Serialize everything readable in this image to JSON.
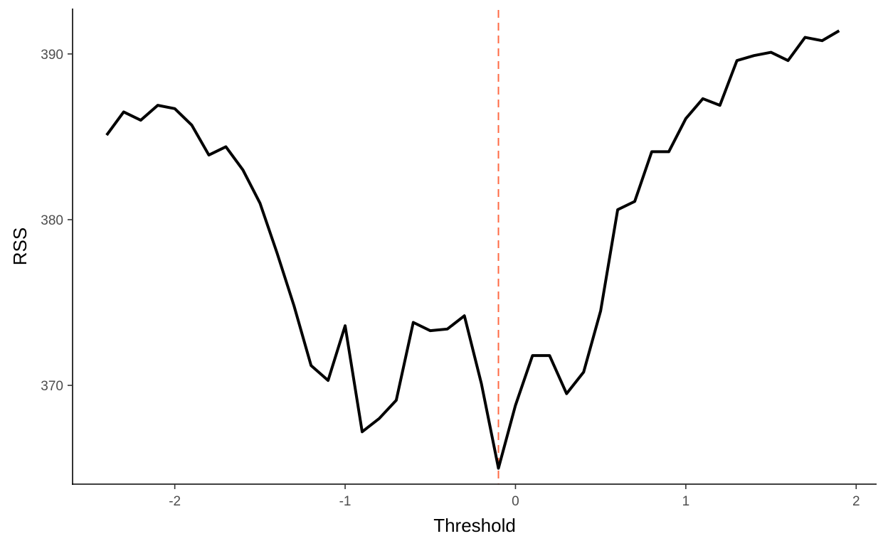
{
  "chart_data": {
    "type": "line",
    "title": "",
    "xlabel": "Threshold",
    "ylabel": "RSS",
    "xlim": [
      -2.6,
      2.12
    ],
    "ylim": [
      364.04,
      392.74
    ],
    "grid": false,
    "x_ticks": [
      -2,
      -1,
      0,
      1,
      2
    ],
    "y_ticks": [
      370,
      380,
      390
    ],
    "line_color": "#000000",
    "reference_line": {
      "x": -0.1,
      "color": "#FF6A44",
      "style": "dashed"
    },
    "series": [
      {
        "x": [
          -2.4,
          -2.3,
          -2.2,
          -2.1,
          -2.0,
          -1.9,
          -1.8,
          -1.7,
          -1.6,
          -1.5,
          -1.4,
          -1.3,
          -1.2,
          -1.1,
          -1.0,
          -0.9,
          -0.8,
          -0.7,
          -0.6,
          -0.5,
          -0.4,
          -0.3,
          -0.2,
          -0.1,
          0.0,
          0.1,
          0.2,
          0.3,
          0.4,
          0.5,
          0.6,
          0.7,
          0.8,
          0.9,
          1.0,
          1.1,
          1.2,
          1.3,
          1.4,
          1.5,
          1.6,
          1.7,
          1.8,
          1.9
        ],
        "y": [
          385.1,
          386.5,
          386.0,
          386.9,
          386.7,
          385.7,
          383.9,
          384.4,
          383.0,
          381.0,
          378.0,
          374.8,
          371.2,
          370.3,
          373.6,
          367.2,
          368.0,
          369.1,
          373.8,
          373.3,
          373.4,
          374.2,
          370.1,
          365.0,
          368.8,
          371.8,
          371.8,
          369.5,
          370.8,
          374.5,
          380.6,
          381.1,
          384.1,
          384.1,
          386.1,
          387.3,
          386.9,
          389.6,
          389.9,
          390.1,
          389.6,
          391.0,
          390.8,
          391.4
        ]
      }
    ]
  }
}
